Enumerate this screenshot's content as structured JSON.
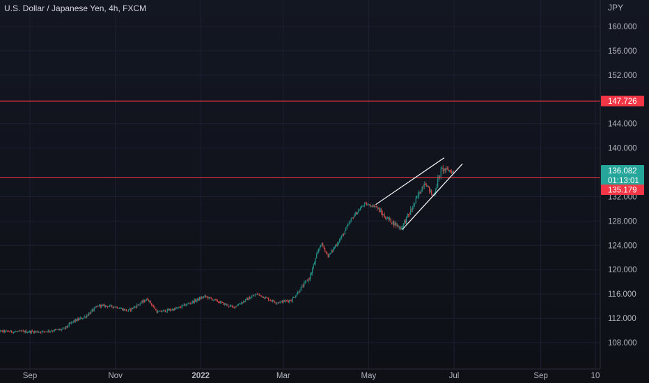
{
  "title": "U.S. Dollar / Japanese Yen, 4h, FXCM",
  "price_axis_unit": "JPY",
  "colors": {
    "background": "#131722",
    "up": "#26a69a",
    "down": "#ef5350",
    "hline": "#f23645",
    "trendline": "#ffffff",
    "current_price_tag": "#26a69a",
    "level_tag": "#f23645"
  },
  "chart_data": {
    "type": "candlestick",
    "timeframe": "4h",
    "symbol": "USDJPY",
    "source": "FXCM",
    "ylim": [
      104.5,
      162.5
    ],
    "y_ticks": [
      "160.000",
      "156.000",
      "152.000",
      "144.000",
      "140.000",
      "132.000",
      "128.000",
      "124.000",
      "120.000",
      "116.000",
      "112.000",
      "108.000"
    ],
    "x_ticks": [
      {
        "label": "Sep",
        "date": "2021-09-01"
      },
      {
        "label": "Nov",
        "date": "2021-11-01"
      },
      {
        "label": "2022",
        "date": "2022-01-01"
      },
      {
        "label": "Mar",
        "date": "2022-03-01"
      },
      {
        "label": "May",
        "date": "2022-05-01"
      },
      {
        "label": "Jul",
        "date": "2022-07-01"
      },
      {
        "label": "Sep",
        "date": "2022-09-01"
      },
      {
        "label": "10",
        "date": "2022-10-10"
      }
    ],
    "price_path": [
      {
        "date": "2021-08-04",
        "value": 109.9
      },
      {
        "date": "2021-08-20",
        "value": 109.8
      },
      {
        "date": "2021-09-10",
        "value": 109.8
      },
      {
        "date": "2021-09-25",
        "value": 110.2
      },
      {
        "date": "2021-10-02",
        "value": 111.5
      },
      {
        "date": "2021-10-10",
        "value": 112.2
      },
      {
        "date": "2021-10-20",
        "value": 114.1
      },
      {
        "date": "2021-11-01",
        "value": 113.9
      },
      {
        "date": "2021-11-10",
        "value": 113.2
      },
      {
        "date": "2021-11-24",
        "value": 115.2
      },
      {
        "date": "2021-12-01",
        "value": 113.0
      },
      {
        "date": "2021-12-15",
        "value": 113.6
      },
      {
        "date": "2022-01-04",
        "value": 115.6
      },
      {
        "date": "2022-01-24",
        "value": 113.8
      },
      {
        "date": "2022-02-10",
        "value": 116.0
      },
      {
        "date": "2022-02-24",
        "value": 114.6
      },
      {
        "date": "2022-03-07",
        "value": 115.0
      },
      {
        "date": "2022-03-20",
        "value": 118.8
      },
      {
        "date": "2022-03-28",
        "value": 124.4
      },
      {
        "date": "2022-04-02",
        "value": 122.2
      },
      {
        "date": "2022-04-12",
        "value": 125.5
      },
      {
        "date": "2022-04-20",
        "value": 128.8
      },
      {
        "date": "2022-04-28",
        "value": 130.8
      },
      {
        "date": "2022-05-06",
        "value": 130.4
      },
      {
        "date": "2022-05-12",
        "value": 128.8
      },
      {
        "date": "2022-05-24",
        "value": 126.8
      },
      {
        "date": "2022-06-01",
        "value": 130.0
      },
      {
        "date": "2022-06-10",
        "value": 134.5
      },
      {
        "date": "2022-06-16",
        "value": 132.0
      },
      {
        "date": "2022-06-22",
        "value": 136.5
      },
      {
        "date": "2022-06-28",
        "value": 136.3
      },
      {
        "date": "2022-07-01",
        "value": 135.9
      }
    ],
    "horizontal_levels": [
      147.726,
      135.179
    ],
    "current_price": "136.082",
    "countdown": "01:13:01",
    "level_labels": [
      "147.726",
      "135.179"
    ],
    "annotations": [
      {
        "type": "trendline",
        "from": {
          "date": "2022-05-06",
          "value": 130.7
        },
        "to": {
          "date": "2022-06-24",
          "value": 138.4
        }
      },
      {
        "type": "trendline",
        "from": {
          "date": "2022-05-25",
          "value": 126.6
        },
        "to": {
          "date": "2022-07-07",
          "value": 137.4
        }
      }
    ]
  }
}
